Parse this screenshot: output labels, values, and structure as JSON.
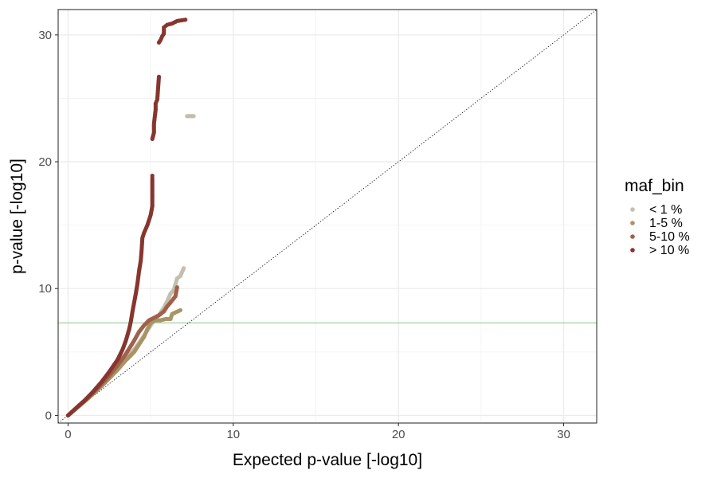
{
  "chart_data": {
    "type": "scatter",
    "xlabel": "Expected p-value [-log10]",
    "ylabel": "p-value [-log10]",
    "xlim": [
      -0.6,
      32
    ],
    "ylim": [
      -0.6,
      32
    ],
    "x_ticks": [
      0,
      10,
      20,
      30
    ],
    "y_ticks": [
      0,
      10,
      20,
      30
    ],
    "x_tick_labels": [
      "0",
      "10",
      "20",
      "30"
    ],
    "y_tick_labels": [
      "0",
      "10",
      "20",
      "30"
    ],
    "grid": true,
    "reference_line": {
      "type": "diagonal",
      "style": "dotted",
      "color": "#000000"
    },
    "threshold_line": {
      "y": 7.3,
      "color": "#7fbf7b"
    },
    "legend": {
      "title": "maf_bin",
      "position": "right",
      "entries": [
        {
          "label": "< 1 %",
          "color": "#c3bfae"
        },
        {
          "label": "1-5 %",
          "color": "#a99466"
        },
        {
          "label": "5-10 %",
          "color": "#a0604a"
        },
        {
          "label": "> 10 %",
          "color": "#86362f"
        }
      ]
    },
    "series": [
      {
        "name": "< 1 %",
        "color": "#c3bfae",
        "points": [
          [
            0,
            0
          ],
          [
            0.3,
            0.34
          ],
          [
            0.6,
            0.68
          ],
          [
            1,
            1.12
          ],
          [
            1.5,
            1.7
          ],
          [
            2,
            2.3
          ],
          [
            2.5,
            2.95
          ],
          [
            3,
            3.65
          ],
          [
            3.5,
            4.4
          ],
          [
            4,
            5.2
          ],
          [
            4.4,
            5.9
          ],
          [
            4.8,
            6.7
          ],
          [
            5.2,
            7.5
          ],
          [
            5.5,
            7.9
          ],
          [
            5.8,
            8.5
          ],
          [
            6.0,
            9.0
          ],
          [
            6.2,
            9.6
          ],
          [
            6.4,
            9.9
          ],
          [
            6.6,
            10.8
          ],
          [
            6.8,
            11.0
          ],
          [
            7.0,
            11.6
          ],
          [
            7.2,
            23.6
          ],
          [
            7.6,
            23.6
          ]
        ]
      },
      {
        "name": "1-5 %",
        "color": "#a99466",
        "points": [
          [
            0,
            0
          ],
          [
            0.3,
            0.33
          ],
          [
            0.6,
            0.66
          ],
          [
            1,
            1.1
          ],
          [
            1.5,
            1.68
          ],
          [
            2,
            2.28
          ],
          [
            2.5,
            2.93
          ],
          [
            3,
            3.6
          ],
          [
            3.5,
            4.35
          ],
          [
            4,
            5.0
          ],
          [
            4.3,
            5.6
          ],
          [
            4.6,
            6.2
          ],
          [
            4.8,
            6.8
          ],
          [
            5.0,
            7.3
          ],
          [
            5.3,
            7.5
          ],
          [
            5.6,
            7.5
          ],
          [
            5.9,
            7.6
          ],
          [
            6.2,
            7.6
          ],
          [
            6.3,
            8.0
          ],
          [
            6.8,
            8.3
          ]
        ]
      },
      {
        "name": "5-10 %",
        "color": "#a0604a",
        "points": [
          [
            0,
            0
          ],
          [
            0.3,
            0.35
          ],
          [
            0.6,
            0.7
          ],
          [
            1,
            1.15
          ],
          [
            1.5,
            1.78
          ],
          [
            2,
            2.45
          ],
          [
            2.5,
            3.15
          ],
          [
            3,
            3.95
          ],
          [
            3.5,
            4.85
          ],
          [
            4,
            5.9
          ],
          [
            4.3,
            6.6
          ],
          [
            4.6,
            7.1
          ],
          [
            4.9,
            7.5
          ],
          [
            5.2,
            7.7
          ],
          [
            5.5,
            7.9
          ],
          [
            5.8,
            8.2
          ],
          [
            6.0,
            8.6
          ],
          [
            6.2,
            8.9
          ],
          [
            6.5,
            9.4
          ],
          [
            6.6,
            10.1
          ]
        ]
      },
      {
        "name": "> 10 %",
        "color": "#86362f",
        "points": [
          [
            0,
            0
          ],
          [
            0.3,
            0.36
          ],
          [
            0.6,
            0.72
          ],
          [
            1,
            1.18
          ],
          [
            1.5,
            1.85
          ],
          [
            2,
            2.6
          ],
          [
            2.5,
            3.45
          ],
          [
            3,
            4.4
          ],
          [
            3.3,
            5.2
          ],
          [
            3.5,
            5.9
          ],
          [
            3.7,
            6.8
          ],
          [
            3.8,
            7.4
          ],
          [
            3.9,
            8.2
          ],
          [
            4.0,
            8.9
          ],
          [
            4.1,
            9.6
          ],
          [
            4.2,
            10.4
          ],
          [
            4.3,
            11.4
          ],
          [
            4.4,
            12.2
          ],
          [
            4.45,
            13.0
          ],
          [
            4.5,
            14.0
          ],
          [
            4.6,
            14.4
          ],
          [
            4.8,
            15.0
          ],
          [
            5.0,
            15.8
          ],
          [
            5.1,
            16.5
          ],
          [
            5.1,
            18.6
          ],
          [
            5.1,
            18.9
          ],
          [
            5.1,
            21.8
          ],
          [
            5.2,
            22.3
          ],
          [
            5.2,
            23.0
          ],
          [
            5.3,
            24.1
          ],
          [
            5.3,
            24.6
          ],
          [
            5.4,
            24.9
          ],
          [
            5.5,
            26.7
          ],
          [
            5.5,
            29.4
          ],
          [
            5.6,
            29.6
          ],
          [
            5.7,
            29.9
          ],
          [
            5.8,
            30.1
          ],
          [
            5.8,
            30.6
          ],
          [
            6.0,
            30.8
          ],
          [
            6.3,
            30.9
          ],
          [
            6.6,
            31.1
          ],
          [
            7.1,
            31.2
          ]
        ]
      }
    ]
  }
}
